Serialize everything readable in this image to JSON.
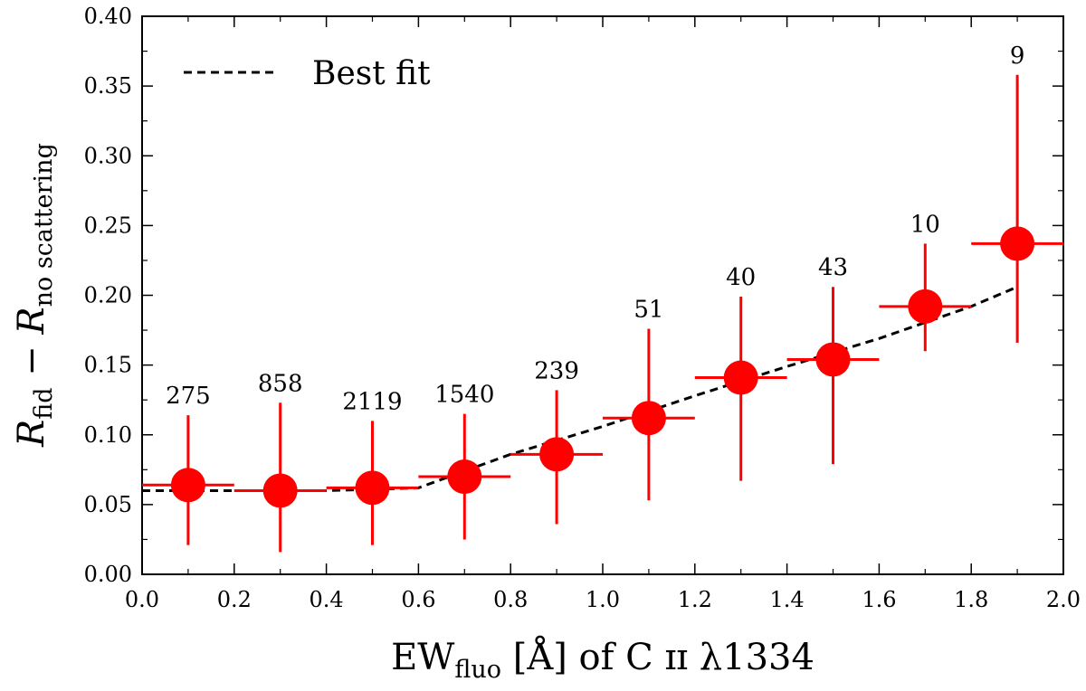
{
  "chart_data": {
    "type": "scatter",
    "xlabel": {
      "main": "EW",
      "sub": "fluo",
      "rest": " [Å] of C ɪɪ λ1334"
    },
    "ylabel": {
      "r1": "R",
      "sub1": "fid",
      "minus": " − ",
      "r2": "R",
      "sub2": "no scattering"
    },
    "xlim": [
      0.0,
      2.0
    ],
    "ylim": [
      0.0,
      0.4
    ],
    "xticks": [
      "0.0",
      "0.2",
      "0.4",
      "0.6",
      "0.8",
      "1.0",
      "1.2",
      "1.4",
      "1.6",
      "1.8",
      "2.0"
    ],
    "yticks": [
      "0.00",
      "0.05",
      "0.10",
      "0.15",
      "0.20",
      "0.25",
      "0.30",
      "0.35",
      "0.40"
    ],
    "legend": {
      "position": "top-left",
      "entries": [
        "Best fit"
      ]
    },
    "colors": {
      "points": "#ff0000",
      "fit": "#000000"
    },
    "points": [
      {
        "x": 0.1,
        "y": 0.064,
        "xerr": 0.1,
        "ylo": 0.021,
        "yhi": 0.114,
        "n": "275"
      },
      {
        "x": 0.3,
        "y": 0.06,
        "xerr": 0.1,
        "ylo": 0.016,
        "yhi": 0.123,
        "n": "858"
      },
      {
        "x": 0.5,
        "y": 0.062,
        "xerr": 0.1,
        "ylo": 0.021,
        "yhi": 0.11,
        "n": "2119"
      },
      {
        "x": 0.7,
        "y": 0.07,
        "xerr": 0.1,
        "ylo": 0.025,
        "yhi": 0.115,
        "n": "1540"
      },
      {
        "x": 0.9,
        "y": 0.086,
        "xerr": 0.1,
        "ylo": 0.036,
        "yhi": 0.132,
        "n": "239"
      },
      {
        "x": 1.1,
        "y": 0.112,
        "xerr": 0.1,
        "ylo": 0.053,
        "yhi": 0.176,
        "n": "51"
      },
      {
        "x": 1.3,
        "y": 0.141,
        "xerr": 0.1,
        "ylo": 0.067,
        "yhi": 0.199,
        "n": "40"
      },
      {
        "x": 1.5,
        "y": 0.154,
        "xerr": 0.1,
        "ylo": 0.079,
        "yhi": 0.206,
        "n": "43"
      },
      {
        "x": 1.7,
        "y": 0.192,
        "xerr": 0.1,
        "ylo": 0.16,
        "yhi": 0.237,
        "n": "10"
      },
      {
        "x": 1.9,
        "y": 0.237,
        "xerr": 0.1,
        "ylo": 0.166,
        "yhi": 0.358,
        "n": "9"
      }
    ],
    "fit_line": {
      "x": [
        0.0,
        0.2,
        0.4,
        0.6,
        0.8,
        1.0,
        1.2,
        1.4,
        1.6,
        1.8,
        1.9
      ],
      "y": [
        0.06,
        0.06,
        0.06,
        0.062,
        0.086,
        0.106,
        0.128,
        0.149,
        0.169,
        0.192,
        0.206
      ]
    }
  }
}
